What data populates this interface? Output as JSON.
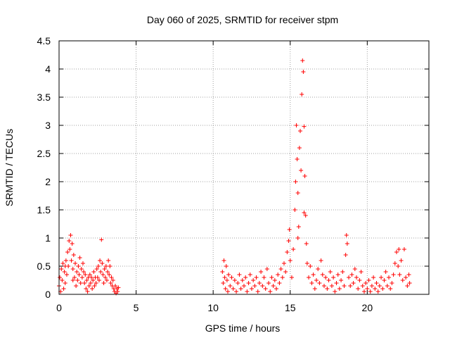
{
  "chart_data": {
    "type": "scatter",
    "title": "Day 060 of 2025, SRMTID for receiver stpm",
    "xlabel": "GPS time / hours",
    "ylabel": "SRMTID / TECUs",
    "xlim": [
      0,
      24
    ],
    "ylim": [
      0,
      4.5
    ],
    "xticks": [
      0,
      5,
      10,
      15,
      20
    ],
    "yticks": [
      0,
      0.5,
      1,
      1.5,
      2,
      2.5,
      3,
      3.5,
      4,
      4.5
    ],
    "xtick_labels": [
      "0",
      "5",
      "10",
      "15",
      "20"
    ],
    "ytick_labels": [
      "0",
      "0.5",
      "1",
      "1.5",
      "2",
      "2.5",
      "3",
      "3.5",
      "4",
      "4.5"
    ],
    "grid": true,
    "marker": "+",
    "color": "#ff0000",
    "points": [
      [
        0.0,
        0.15
      ],
      [
        0.05,
        0.3
      ],
      [
        0.1,
        0.05
      ],
      [
        0.15,
        0.45
      ],
      [
        0.2,
        0.25
      ],
      [
        0.25,
        0.55
      ],
      [
        0.3,
        0.1
      ],
      [
        0.35,
        0.4
      ],
      [
        0.4,
        0.2
      ],
      [
        0.45,
        0.6
      ],
      [
        0.5,
        0.35
      ],
      [
        0.55,
        0.75
      ],
      [
        0.6,
        0.5
      ],
      [
        0.65,
        0.95
      ],
      [
        0.7,
        0.8
      ],
      [
        0.75,
        1.05
      ],
      [
        0.8,
        0.6
      ],
      [
        0.85,
        0.9
      ],
      [
        0.9,
        0.45
      ],
      [
        0.95,
        0.7
      ],
      [
        1.0,
        0.3
      ],
      [
        1.05,
        0.55
      ],
      [
        1.1,
        0.15
      ],
      [
        1.15,
        0.4
      ],
      [
        1.2,
        0.25
      ],
      [
        1.25,
        0.5
      ],
      [
        1.3,
        0.35
      ],
      [
        1.35,
        0.65
      ],
      [
        1.4,
        0.2
      ],
      [
        1.45,
        0.45
      ],
      [
        1.5,
        0.3
      ],
      [
        1.55,
        0.55
      ],
      [
        1.6,
        0.4
      ],
      [
        1.65,
        0.2
      ],
      [
        1.7,
        0.35
      ],
      [
        1.75,
        0.1
      ],
      [
        1.8,
        0.25
      ],
      [
        1.85,
        0.05
      ],
      [
        1.9,
        0.3
      ],
      [
        1.95,
        0.15
      ],
      [
        2.0,
        0.35
      ],
      [
        2.05,
        0.2
      ],
      [
        2.1,
        0.3
      ],
      [
        2.15,
        0.1
      ],
      [
        2.2,
        0.25
      ],
      [
        2.25,
        0.4
      ],
      [
        2.3,
        0.15
      ],
      [
        2.35,
        0.3
      ],
      [
        2.4,
        0.2
      ],
      [
        2.45,
        0.45
      ],
      [
        2.5,
        0.3
      ],
      [
        2.55,
        0.5
      ],
      [
        2.6,
        0.25
      ],
      [
        2.65,
        0.6
      ],
      [
        2.7,
        0.4
      ],
      [
        2.75,
        0.97
      ],
      [
        2.8,
        0.55
      ],
      [
        2.85,
        0.35
      ],
      [
        2.9,
        0.2
      ],
      [
        2.95,
        0.45
      ],
      [
        3.0,
        0.3
      ],
      [
        3.05,
        0.5
      ],
      [
        3.1,
        0.25
      ],
      [
        3.15,
        0.4
      ],
      [
        3.2,
        0.6
      ],
      [
        3.25,
        0.35
      ],
      [
        3.3,
        0.5
      ],
      [
        3.35,
        0.2
      ],
      [
        3.4,
        0.3
      ],
      [
        3.45,
        0.15
      ],
      [
        3.5,
        0.25
      ],
      [
        3.55,
        0.1
      ],
      [
        3.6,
        0.05
      ],
      [
        3.65,
        0.15
      ],
      [
        3.7,
        0.02
      ],
      [
        3.75,
        0.1
      ],
      [
        3.8,
        0.05
      ],
      [
        3.85,
        0.12
      ],
      [
        0.4,
        0.5
      ],
      [
        0.9,
        0.25
      ],
      [
        10.6,
        0.4
      ],
      [
        10.65,
        0.2
      ],
      [
        10.7,
        0.6
      ],
      [
        10.75,
        0.3
      ],
      [
        10.8,
        0.1
      ],
      [
        10.85,
        0.5
      ],
      [
        10.9,
        0.25
      ],
      [
        10.95,
        0.05
      ],
      [
        11.0,
        0.35
      ],
      [
        11.1,
        0.15
      ],
      [
        11.2,
        0.3
      ],
      [
        11.3,
        0.1
      ],
      [
        11.4,
        0.25
      ],
      [
        11.5,
        0.05
      ],
      [
        11.6,
        0.2
      ],
      [
        11.7,
        0.35
      ],
      [
        11.8,
        0.1
      ],
      [
        11.9,
        0.25
      ],
      [
        12.0,
        0.15
      ],
      [
        12.1,
        0.3
      ],
      [
        12.2,
        0.05
      ],
      [
        12.3,
        0.2
      ],
      [
        12.4,
        0.35
      ],
      [
        12.5,
        0.1
      ],
      [
        12.6,
        0.25
      ],
      [
        12.7,
        0.15
      ],
      [
        12.8,
        0.3
      ],
      [
        12.9,
        0.05
      ],
      [
        13.0,
        0.2
      ],
      [
        13.1,
        0.4
      ],
      [
        13.2,
        0.15
      ],
      [
        13.3,
        0.3
      ],
      [
        13.4,
        0.1
      ],
      [
        13.5,
        0.45
      ],
      [
        13.6,
        0.2
      ],
      [
        13.7,
        0.05
      ],
      [
        13.8,
        0.3
      ],
      [
        13.9,
        0.15
      ],
      [
        14.0,
        0.25
      ],
      [
        14.1,
        0.1
      ],
      [
        14.2,
        0.35
      ],
      [
        14.3,
        0.2
      ],
      [
        14.4,
        0.45
      ],
      [
        14.5,
        0.3
      ],
      [
        14.6,
        0.55
      ],
      [
        14.7,
        0.4
      ],
      [
        14.8,
        0.75
      ],
      [
        14.9,
        0.95
      ],
      [
        14.95,
        1.15
      ],
      [
        15.0,
        0.6
      ],
      [
        15.1,
        0.3
      ],
      [
        15.2,
        0.8
      ],
      [
        15.3,
        1.5
      ],
      [
        15.35,
        2.0
      ],
      [
        15.4,
        3.0
      ],
      [
        15.45,
        2.4
      ],
      [
        15.5,
        1.8
      ],
      [
        15.55,
        1.2
      ],
      [
        15.6,
        2.6
      ],
      [
        15.65,
        2.9
      ],
      [
        15.7,
        2.2
      ],
      [
        15.75,
        3.55
      ],
      [
        15.8,
        4.15
      ],
      [
        15.85,
        3.95
      ],
      [
        15.9,
        2.98
      ],
      [
        15.95,
        2.1
      ],
      [
        16.0,
        1.4
      ],
      [
        16.05,
        0.9
      ],
      [
        16.1,
        0.55
      ],
      [
        16.2,
        0.3
      ],
      [
        16.3,
        0.5
      ],
      [
        16.4,
        0.2
      ],
      [
        16.5,
        0.35
      ],
      [
        16.6,
        0.1
      ],
      [
        16.7,
        0.25
      ],
      [
        16.8,
        0.45
      ],
      [
        16.9,
        0.2
      ],
      [
        17.0,
        0.6
      ],
      [
        17.1,
        0.35
      ],
      [
        17.2,
        0.15
      ],
      [
        17.3,
        0.3
      ],
      [
        17.4,
        0.1
      ],
      [
        17.5,
        0.25
      ],
      [
        17.6,
        0.4
      ],
      [
        17.7,
        0.15
      ],
      [
        17.8,
        0.3
      ],
      [
        17.9,
        0.05
      ],
      [
        18.0,
        0.2
      ],
      [
        18.1,
        0.35
      ],
      [
        18.2,
        0.1
      ],
      [
        18.3,
        0.25
      ],
      [
        18.4,
        0.4
      ],
      [
        18.5,
        0.15
      ],
      [
        18.6,
        0.7
      ],
      [
        18.65,
        1.05
      ],
      [
        18.7,
        0.9
      ],
      [
        18.8,
        0.3
      ],
      [
        18.9,
        0.15
      ],
      [
        19.0,
        0.35
      ],
      [
        19.1,
        0.2
      ],
      [
        19.2,
        0.45
      ],
      [
        19.3,
        0.3
      ],
      [
        19.4,
        0.1
      ],
      [
        19.5,
        0.25
      ],
      [
        19.6,
        0.4
      ],
      [
        19.7,
        0.15
      ],
      [
        19.8,
        0.05
      ],
      [
        19.9,
        0.2
      ],
      [
        20.0,
        0.1
      ],
      [
        20.1,
        0.25
      ],
      [
        20.2,
        0.05
      ],
      [
        20.3,
        0.15
      ],
      [
        20.4,
        0.3
      ],
      [
        20.5,
        0.1
      ],
      [
        20.6,
        0.2
      ],
      [
        20.7,
        0.05
      ],
      [
        20.8,
        0.15
      ],
      [
        20.9,
        0.3
      ],
      [
        21.0,
        0.1
      ],
      [
        21.1,
        0.25
      ],
      [
        21.2,
        0.4
      ],
      [
        21.3,
        0.15
      ],
      [
        21.4,
        0.3
      ],
      [
        21.5,
        0.1
      ],
      [
        21.6,
        0.2
      ],
      [
        21.7,
        0.35
      ],
      [
        21.8,
        0.55
      ],
      [
        21.9,
        0.75
      ],
      [
        22.0,
        0.5
      ],
      [
        22.05,
        0.8
      ],
      [
        22.1,
        0.35
      ],
      [
        22.2,
        0.6
      ],
      [
        22.3,
        0.25
      ],
      [
        22.4,
        0.8
      ],
      [
        22.5,
        0.3
      ],
      [
        22.6,
        0.15
      ],
      [
        22.7,
        0.35
      ],
      [
        22.75,
        0.2
      ],
      [
        15.5,
        1.0
      ],
      [
        15.9,
        1.45
      ]
    ]
  }
}
